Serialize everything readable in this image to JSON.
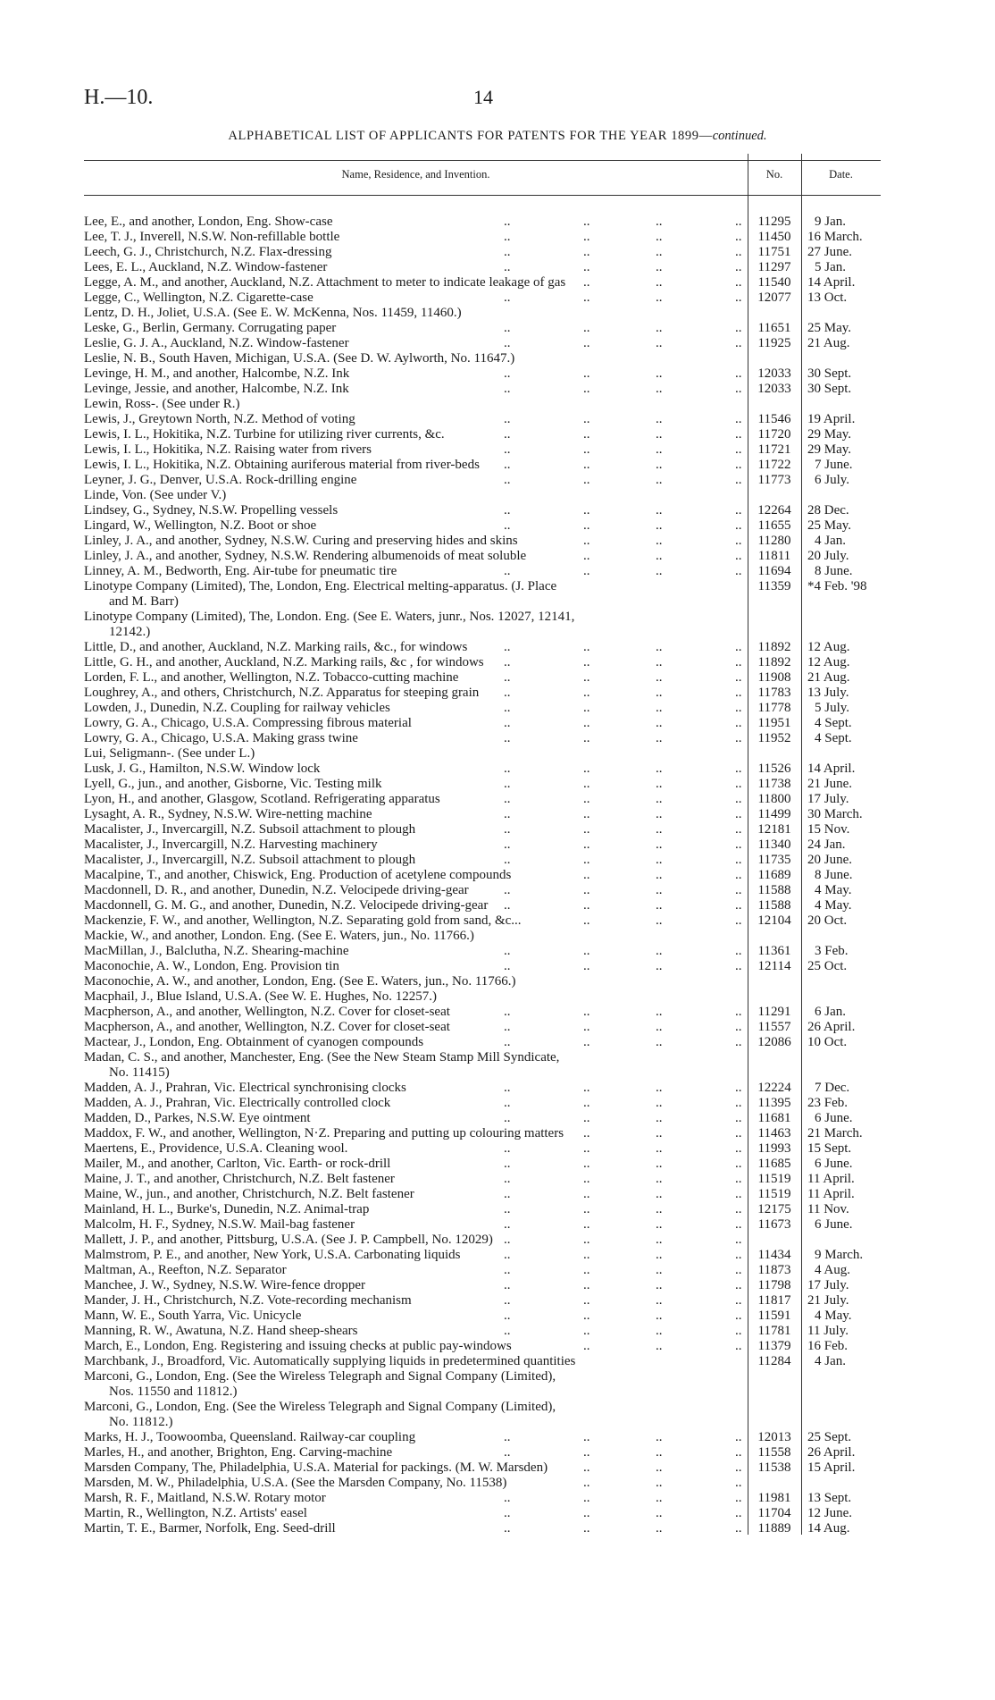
{
  "header": {
    "reference": "H.—10.",
    "page_number": "14"
  },
  "title": {
    "main": "ALPHABETICAL LIST OF APPLICANTS FOR PATENTS FOR THE YEAR 1899—",
    "suffix": "continued."
  },
  "columns": {
    "name": "Name, Residence, and Invention.",
    "no": "No.",
    "date": "Date."
  },
  "rows": [
    {
      "text": "Lee, E., and another, London, Eng.  Show-case",
      "leaders": true,
      "no": "11295",
      "date": "9 Jan."
    },
    {
      "text": "Lee, T. J., Inverell, N.S.W.  Non-refillable bottle",
      "leaders": true,
      "no": "11450",
      "date": "16 March."
    },
    {
      "text": "Leech, G. J., Christchurch, N.Z.  Flax-dressing",
      "leaders": true,
      "no": "11751",
      "date": "27 June."
    },
    {
      "text": "Lees, E. L., Auckland, N.Z.  Window-fastener",
      "leaders": true,
      "no": "11297",
      "date": "5 Jan."
    },
    {
      "text": "Legge, A. M., and another, Auckland, N.Z.  Attachment to meter to indicate leakage of gas",
      "leaders": true,
      "no": "11540",
      "date": "14 April."
    },
    {
      "text": "Legge, C., Wellington, N.Z.  Cigarette-case",
      "leaders": true,
      "no": "12077",
      "date": "13 Oct."
    },
    {
      "text": "Lentz, D. H., Joliet, U.S.A.  (See E. W. McKenna, Nos. 11459, 11460.)",
      "leaders": false,
      "no": "",
      "date": ""
    },
    {
      "text": "Leske, G., Berlin, Germany.  Corrugating paper",
      "leaders": true,
      "no": "11651",
      "date": "25 May."
    },
    {
      "text": "Leslie, G. J. A., Auckland, N.Z.  Window-fastener",
      "leaders": true,
      "no": "11925",
      "date": "21 Aug."
    },
    {
      "text": "Leslie, N. B., South Haven, Michigan, U.S.A.  (See D. W. Aylworth, No. 11647.)",
      "leaders": false,
      "no": "",
      "date": ""
    },
    {
      "text": "Levinge, H. M., and another, Halcombe, N.Z.  Ink",
      "leaders": true,
      "no": "12033",
      "date": "30 Sept."
    },
    {
      "text": "Levinge, Jessie, and another, Halcombe, N.Z.  Ink",
      "leaders": true,
      "no": "12033",
      "date": "30 Sept."
    },
    {
      "text": "Lewin, Ross-.  (See under R.)",
      "leaders": false,
      "no": "",
      "date": ""
    },
    {
      "text": "Lewis, J., Greytown North, N.Z.  Method of voting",
      "leaders": true,
      "no": "11546",
      "date": "19 April."
    },
    {
      "text": "Lewis, I. L., Hokitika, N.Z.  Turbine for utilizing river currents, &c.",
      "leaders": true,
      "no": "11720",
      "date": "29 May."
    },
    {
      "text": "Lewis, I. L., Hokitika, N.Z.  Raising water from rivers",
      "leaders": true,
      "no": "11721",
      "date": "29 May."
    },
    {
      "text": "Lewis, I. L., Hokitika, N.Z.  Obtaining auriferous material from river-beds",
      "leaders": true,
      "no": "11722",
      "date": "7 June."
    },
    {
      "text": "Leyner, J. G., Denver, U.S.A.  Rock-drilling engine",
      "leaders": true,
      "no": "11773",
      "date": "6 July."
    },
    {
      "text": "Linde, Von.  (See under V.)",
      "leaders": false,
      "no": "",
      "date": ""
    },
    {
      "text": "Lindsey, G., Sydney, N.S.W.  Propelling vessels",
      "leaders": true,
      "no": "12264",
      "date": "28 Dec."
    },
    {
      "text": "Lingard, W., Wellington, N.Z.  Boot or shoe",
      "leaders": true,
      "no": "11655",
      "date": "25 May."
    },
    {
      "text": "Linley, J. A., and another, Sydney, N.S.W.  Curing and preserving hides and skins",
      "leaders": true,
      "no": "11280",
      "date": "4 Jan."
    },
    {
      "text": "Linley, J. A., and another, Sydney, N.S.W.  Rendering albumenoids of meat soluble",
      "leaders": true,
      "no": "11811",
      "date": "20 July."
    },
    {
      "text": "Linney, A. M., Bedworth, Eng.  Air-tube for pneumatic tire",
      "leaders": true,
      "no": "11694",
      "date": "8 June."
    },
    {
      "text": "Linotype Company (Limited), The, London, Eng.  Electrical melting-apparatus.  (J. Place",
      "cont": "and M. Barr)",
      "leaders": false,
      "no": "11359",
      "date": "*4 Feb. '98"
    },
    {
      "text": "Linotype Company (Limited), The, London. Eng.  (See E. Waters, junr., Nos. 12027, 12141,",
      "cont": "12142.)",
      "leaders": false,
      "no": "",
      "date": ""
    },
    {
      "text": "Little, D., and another, Auckland, N.Z.  Marking rails, &c., for windows",
      "leaders": true,
      "no": "11892",
      "date": "12 Aug."
    },
    {
      "text": "Little, G. H., and another, Auckland, N.Z.  Marking rails, &c , for windows",
      "leaders": true,
      "no": "11892",
      "date": "12 Aug."
    },
    {
      "text": "Lorden, F. L., and another, Wellington, N.Z.  Tobacco-cutting machine",
      "leaders": true,
      "no": "11908",
      "date": "21 Aug."
    },
    {
      "text": "Loughrey, A., and others, Christchurch, N.Z.  Apparatus for steeping grain",
      "leaders": true,
      "no": "11783",
      "date": "13 July."
    },
    {
      "text": "Lowden, J., Dunedin, N.Z.  Coupling for railway vehicles",
      "leaders": true,
      "no": "11778",
      "date": "5 July."
    },
    {
      "text": "Lowry, G. A., Chicago, U.S.A.  Compressing fibrous material",
      "leaders": true,
      "no": "11951",
      "date": "4 Sept."
    },
    {
      "text": "Lowry, G. A., Chicago, U.S.A.  Making grass twine",
      "leaders": true,
      "no": "11952",
      "date": "4 Sept."
    },
    {
      "text": "Lui, Seligmann-.  (See under L.)",
      "leaders": false,
      "no": "",
      "date": ""
    },
    {
      "text": "Lusk, J. G., Hamilton, N.S.W.  Window lock",
      "leaders": true,
      "no": "11526",
      "date": "14 April."
    },
    {
      "text": "Lyell, G., jun., and another, Gisborne, Vic.  Testing milk",
      "leaders": true,
      "no": "11738",
      "date": "21 June."
    },
    {
      "text": "Lyon, H., and another, Glasgow, Scotland.  Refrigerating apparatus",
      "leaders": true,
      "no": "11800",
      "date": "17 July."
    },
    {
      "text": "Lysaght, A. R., Sydney, N.S.W.  Wire-netting machine",
      "leaders": true,
      "no": "11499",
      "date": "30 March."
    },
    {
      "text": "Macalister, J., Invercargill, N.Z.  Subsoil attachment to plough",
      "leaders": true,
      "no": "12181",
      "date": "15 Nov."
    },
    {
      "text": "Macalister, J., Invercargill, N.Z.  Harvesting machinery",
      "leaders": true,
      "no": "11340",
      "date": "24 Jan."
    },
    {
      "text": "Macalister, J., Invercargill, N.Z.  Subsoil attachment to plough",
      "leaders": true,
      "no": "11735",
      "date": "20 June."
    },
    {
      "text": "Macalpine, T., and another, Chiswick, Eng.  Production of acetylene compounds",
      "leaders": true,
      "no": "11689",
      "date": "8 June."
    },
    {
      "text": "Macdonnell, D. R., and another, Dunedin, N.Z.  Velocipede driving-gear",
      "leaders": true,
      "no": "11588",
      "date": "4 May."
    },
    {
      "text": "Macdonnell, G. M. G., and another, Dunedin, N.Z.  Velocipede driving-gear",
      "leaders": true,
      "no": "11588",
      "date": "4 May."
    },
    {
      "text": "Mackenzie, F. W., and another, Wellington, N.Z.  Separating gold from sand, &c...",
      "leaders": true,
      "no": "12104",
      "date": "20 Oct."
    },
    {
      "text": "Mackie, W., and another, London. Eng.  (See E. Waters, jun., No. 11766.)",
      "leaders": false,
      "no": "",
      "date": ""
    },
    {
      "text": "MacMillan, J., Balclutha, N.Z.  Shearing-machine",
      "leaders": true,
      "no": "11361",
      "date": "3 Feb."
    },
    {
      "text": "Maconochie, A. W., London, Eng.  Provision tin",
      "leaders": true,
      "no": "12114",
      "date": "25 Oct."
    },
    {
      "text": "Maconochie, A. W., and another, London, Eng.  (See E. Waters, jun., No. 11766.)",
      "leaders": false,
      "no": "",
      "date": ""
    },
    {
      "text": "Macphail, J., Blue Island, U.S.A.  (See W. E. Hughes, No. 12257.)",
      "leaders": false,
      "no": "",
      "date": ""
    },
    {
      "text": "Macpherson, A., and another, Wellington, N.Z.  Cover for closet-seat",
      "leaders": true,
      "no": "11291",
      "date": "6 Jan."
    },
    {
      "text": "Macpherson, A., and another, Wellington, N.Z.  Cover for closet-seat",
      "leaders": true,
      "no": "11557",
      "date": "26 April."
    },
    {
      "text": "Mactear, J., London, Eng.  Obtainment of cyanogen compounds",
      "leaders": true,
      "no": "12086",
      "date": "10 Oct."
    },
    {
      "text": "Madan, C. S., and another, Manchester, Eng.  (See the New Steam Stamp Mill Syndicate,",
      "cont": "No. 11415)",
      "leaders": false,
      "no": "",
      "date": ""
    },
    {
      "text": "Madden, A. J., Prahran, Vic.  Electrical synchronising clocks",
      "leaders": true,
      "no": "12224",
      "date": "7 Dec."
    },
    {
      "text": "Madden, A. J., Prahran, Vic.  Electrically controlled clock",
      "leaders": true,
      "no": "11395",
      "date": "23 Feb."
    },
    {
      "text": "Madden, D., Parkes, N.S.W.  Eye ointment",
      "leaders": true,
      "no": "11681",
      "date": "6 June."
    },
    {
      "text": "Maddox, F. W., and another, Wellington, N·Z.  Preparing and  putting up colouring matters",
      "leaders": true,
      "no": "11463",
      "date": "21 March."
    },
    {
      "text": "Maertens, E., Providence, U.S.A.  Cleaning wool.",
      "leaders": true,
      "no": "11993",
      "date": "15 Sept."
    },
    {
      "text": "Mailer, M., and another, Carlton, Vic.  Earth- or rock-drill",
      "leaders": true,
      "no": "11685",
      "date": "6 June."
    },
    {
      "text": "Maine, J. T., and another, Christchurch, N.Z.  Belt fastener",
      "leaders": true,
      "no": "11519",
      "date": "11 April."
    },
    {
      "text": "Maine, W., jun., and another, Christchurch, N.Z.  Belt fastener",
      "leaders": true,
      "no": "11519",
      "date": "11 April."
    },
    {
      "text": "Mainland, H. L., Burke's, Dunedin, N.Z.  Animal-trap",
      "leaders": true,
      "no": "12175",
      "date": "11 Nov."
    },
    {
      "text": "Malcolm, H. F., Sydney, N.S.W.  Mail-bag fastener",
      "leaders": true,
      "no": "11673",
      "date": "6 June."
    },
    {
      "text": "Mallett, J. P., and another, Pittsburg, U.S.A.  (See J. P. Campbell, No. 12029)",
      "leaders": true,
      "no": "",
      "date": ""
    },
    {
      "text": "Malmstrom, P. E., and another, New York, U.S.A.  Carbonating liquids",
      "leaders": true,
      "no": "11434",
      "date": "9 March."
    },
    {
      "text": "Maltman, A., Reefton, N.Z.  Separator",
      "leaders": true,
      "no": "11873",
      "date": "4 Aug."
    },
    {
      "text": "Manchee, J. W., Sydney, N.S.W.  Wire-fence dropper",
      "leaders": true,
      "no": "11798",
      "date": "17 July."
    },
    {
      "text": "Mander, J. H., Christchurch, N.Z.  Vote-recording mechanism",
      "leaders": true,
      "no": "11817",
      "date": "21 July."
    },
    {
      "text": "Mann, W. E., South Yarra, Vic.  Unicycle",
      "leaders": true,
      "no": "11591",
      "date": "4 May."
    },
    {
      "text": "Manning, R. W., Awatuna, N.Z.  Hand sheep-shears",
      "leaders": true,
      "no": "11781",
      "date": "11 July."
    },
    {
      "text": "March, E., London, Eng.  Registering and issuing checks at public pay-windows",
      "leaders": true,
      "no": "11379",
      "date": "16 Feb."
    },
    {
      "text": "Marchbank, J., Broadford, Vic.  Automatically supplying liquids in predetermined quantities",
      "leaders": false,
      "no": "11284",
      "date": "4 Jan."
    },
    {
      "text": "Marconi, G., London, Eng.  (See the Wireless Telegraph and Signal Company (Limited),",
      "cont": "Nos. 11550 and 11812.)",
      "leaders": false,
      "no": "",
      "date": ""
    },
    {
      "text": "Marconi, G., London, Eng.  (See the Wireless Telegraph and Signal Company (Limited),",
      "cont": "No. 11812.)",
      "leaders": false,
      "no": "",
      "date": ""
    },
    {
      "text": "Marks, H. J., Toowoomba, Queensland.  Railway-car coupling",
      "leaders": true,
      "no": "12013",
      "date": "25 Sept."
    },
    {
      "text": "Marles, H., and another, Brighton, Eng.  Carving-machine",
      "leaders": true,
      "no": "11558",
      "date": "26 April."
    },
    {
      "text": "Marsden Company, The, Philadelphia, U.S.A.  Material for packings.  (M. W. Marsden)",
      "leaders": true,
      "no": "11538",
      "date": "15 April."
    },
    {
      "text": "Marsden, M. W., Philadelphia, U.S.A.  (See the Marsden Company, No. 11538)",
      "leaders": true,
      "no": "",
      "date": ""
    },
    {
      "text": "Marsh, R. F., Maitland, N.S.W.  Rotary motor",
      "leaders": true,
      "no": "11981",
      "date": "13 Sept."
    },
    {
      "text": "Martin, R., Wellington, N.Z.  Artists' easel",
      "leaders": true,
      "no": "11704",
      "date": "12 June."
    },
    {
      "text": "Martin, T. E., Barmer, Norfolk, Eng.  Seed-drill",
      "leaders": true,
      "no": "11889",
      "date": "14 Aug."
    }
  ]
}
